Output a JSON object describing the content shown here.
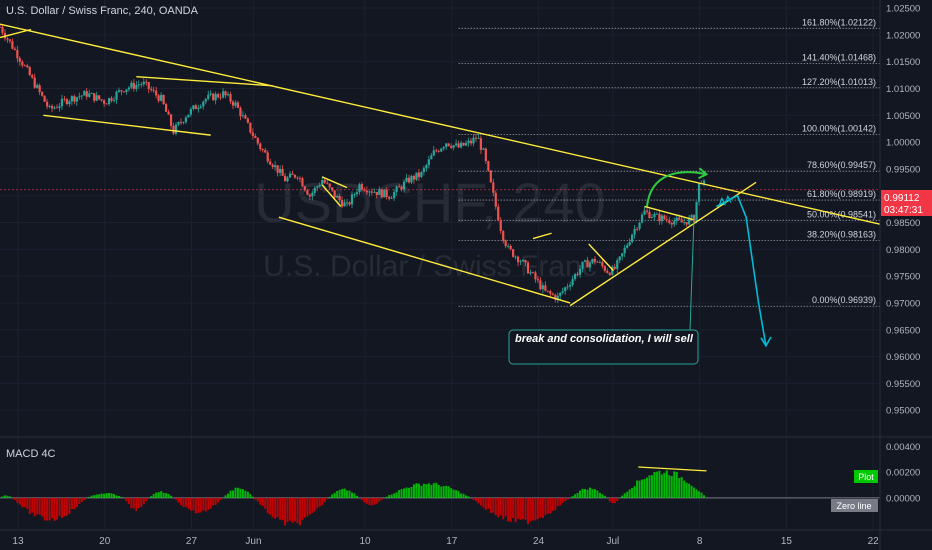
{
  "header": {
    "title": "U.S. Dollar / Swiss Franc, 240, OANDA"
  },
  "watermark": {
    "symbol": "USDCHF, 240",
    "name": "U.S. Dollar / Swiss Franc"
  },
  "price": {
    "current": "0.99112",
    "countdown": "03:47:31"
  },
  "annotation": {
    "text": "break and consolidation, I will sell"
  },
  "macd": {
    "title": "MACD 4C",
    "plot_label": "Plot",
    "zero_label": "Zero line"
  },
  "colors": {
    "background": "#131722",
    "bull": "#26a69a",
    "bear": "#ef5350",
    "trendline": "#ffeb3b",
    "arrow_green": "#2ecc40",
    "arrow_cyan": "#00bcd4",
    "price_tag": "#f23645",
    "macd_green": "#00c800",
    "macd_red": "#d50000"
  },
  "chart_data": [
    {
      "type": "candlestick",
      "title": "U.S. Dollar / Swiss Franc, 240, OANDA",
      "x_ticks": [
        {
          "label": "13",
          "x": 0.45
        },
        {
          "label": "20",
          "x": 7.45
        },
        {
          "label": "27",
          "x": 14.45
        },
        {
          "label": "Jun",
          "x": 19.45
        },
        {
          "label": "10",
          "x": 28.45
        },
        {
          "label": "17",
          "x": 35.45
        },
        {
          "label": "24",
          "x": 42.45
        },
        {
          "label": "Jul",
          "x": 48.45
        },
        {
          "label": "8",
          "x": 55.45
        },
        {
          "label": "15",
          "x": 62.45
        },
        {
          "label": "22",
          "x": 69.45
        }
      ],
      "xlim": [
        -1.0,
        70.0
      ],
      "y_ticks": [
        "0.95000",
        "0.95500",
        "0.96000",
        "0.96500",
        "0.97000",
        "0.97500",
        "0.98000",
        "0.98500",
        "0.99000",
        "0.99500",
        "1.00000",
        "1.00500",
        "1.01000",
        "1.01500",
        "1.02000",
        "1.02500"
      ],
      "ylim": [
        0.945,
        1.0265
      ],
      "fib_levels": [
        {
          "label": "161.80%(1.02122)",
          "value": 1.02122
        },
        {
          "label": "141.40%(1.01468)",
          "value": 1.01468
        },
        {
          "label": "127.20%(1.01013)",
          "value": 1.01013
        },
        {
          "label": "100.00%(1.00142)",
          "value": 1.00142
        },
        {
          "label": "78.60%(0.99457)",
          "value": 0.99457
        },
        {
          "label": "61.80%(0.98919)",
          "value": 0.98919
        },
        {
          "label": "50.00%(0.98541)",
          "value": 0.98541
        },
        {
          "label": "38.20%(0.98163)",
          "value": 0.98163
        },
        {
          "label": "0.00%(0.96939)",
          "value": 0.96939
        }
      ],
      "fib_x_start": 36.0,
      "close_path": [
        [
          -1.0,
          1.0215
        ],
        [
          0.5,
          1.016
        ],
        [
          2.0,
          1.01
        ],
        [
          3.0,
          1.006
        ],
        [
          4.5,
          1.008
        ],
        [
          6.0,
          1.009
        ],
        [
          7.5,
          1.0075
        ],
        [
          9.0,
          1.01
        ],
        [
          10.5,
          1.011
        ],
        [
          12.0,
          1.008
        ],
        [
          13.0,
          1.002
        ],
        [
          14.0,
          1.005
        ],
        [
          15.5,
          1.008
        ],
        [
          17.0,
          1.009
        ],
        [
          18.0,
          1.007
        ],
        [
          19.0,
          1.003
        ],
        [
          20.0,
          0.999
        ],
        [
          21.0,
          0.996
        ],
        [
          22.0,
          0.993
        ],
        [
          23.0,
          0.994
        ],
        [
          24.0,
          0.99
        ],
        [
          25.0,
          0.993
        ],
        [
          26.0,
          0.99
        ],
        [
          27.0,
          0.988
        ],
        [
          28.0,
          0.992
        ],
        [
          29.0,
          0.991
        ],
        [
          30.5,
          0.99
        ],
        [
          32.0,
          0.993
        ],
        [
          33.0,
          0.994
        ],
        [
          34.0,
          0.998
        ],
        [
          35.0,
          1.0
        ],
        [
          36.0,
          0.999
        ],
        [
          37.0,
          1.0
        ],
        [
          37.5,
          1.001
        ],
        [
          38.0,
          0.998
        ],
        [
          38.5,
          0.993
        ],
        [
          39.0,
          0.988
        ],
        [
          39.5,
          0.983
        ],
        [
          40.0,
          0.98
        ],
        [
          41.0,
          0.978
        ],
        [
          42.0,
          0.975
        ],
        [
          43.0,
          0.972
        ],
        [
          44.0,
          0.971
        ],
        [
          45.0,
          0.974
        ],
        [
          46.0,
          0.977
        ],
        [
          47.0,
          0.978
        ],
        [
          48.0,
          0.976
        ],
        [
          48.5,
          0.976
        ],
        [
          49.0,
          0.978
        ],
        [
          50.0,
          0.983
        ],
        [
          51.0,
          0.987
        ],
        [
          52.0,
          0.986
        ],
        [
          53.0,
          0.9855
        ],
        [
          54.0,
          0.985
        ],
        [
          55.0,
          0.9858
        ],
        [
          55.5,
          0.9935
        ],
        [
          56.0,
          0.9911
        ]
      ],
      "trendlines": [
        {
          "points": [
            [
              -1.0,
              1.022
            ],
            [
              70.0,
              0.9847
            ]
          ]
        },
        {
          "points": [
            [
              -1.0,
              1.0195
            ],
            [
              1.5,
              1.021
            ]
          ]
        },
        {
          "points": [
            [
              2.5,
              1.005
            ],
            [
              16.0,
              1.0013
            ]
          ]
        },
        {
          "points": [
            [
              10.0,
              1.0122
            ],
            [
              21.0,
              1.0105
            ]
          ]
        },
        {
          "points": [
            [
              21.5,
              0.986
            ],
            [
              45.0,
              0.97
            ]
          ]
        },
        {
          "points": [
            [
              25.0,
              0.9935
            ],
            [
              27.0,
              0.9915
            ]
          ]
        },
        {
          "points": [
            [
              25.0,
              0.992
            ],
            [
              26.5,
              0.988
            ]
          ]
        },
        {
          "points": [
            [
              42.0,
              0.982
            ],
            [
              43.5,
              0.983
            ]
          ]
        },
        {
          "points": [
            [
              46.5,
              0.981
            ],
            [
              48.5,
              0.976
            ]
          ]
        },
        {
          "points": [
            [
              45.0,
              0.9695
            ],
            [
              60.0,
              0.9925
            ]
          ]
        },
        {
          "points": [
            [
              51.0,
              0.988
            ],
            [
              55.0,
              0.9855
            ]
          ]
        }
      ],
      "projection": {
        "green_arc": [
          [
            51.2,
            0.988
          ],
          [
            51.5,
            0.9945
          ],
          [
            54.0,
            0.995
          ],
          [
            56.0,
            0.994
          ]
        ],
        "cyan_path": [
          [
            56.8,
            0.988
          ],
          [
            58.5,
            0.99
          ],
          [
            59.2,
            0.986
          ],
          [
            60.2,
            0.97
          ],
          [
            60.8,
            0.962
          ]
        ]
      },
      "callout_anchor": [
        55.0,
        0.9865
      ]
    },
    {
      "type": "bar",
      "title": "MACD 4C",
      "y_ticks": [
        "0.00000",
        "0.00200",
        "0.00400"
      ],
      "ylim": [
        -0.0025,
        0.0045
      ],
      "x_range": [
        -1.0,
        56.0
      ],
      "series": [
        {
          "name": "Plot",
          "segments": [
            {
              "from": -1.0,
              "to": 0.0,
              "peak": 0.0002
            },
            {
              "from": 0.0,
              "to": 6.0,
              "peak": -0.0018
            },
            {
              "from": 6.0,
              "to": 9.0,
              "peak": 0.0004
            },
            {
              "from": 9.0,
              "to": 11.0,
              "peak": -0.001
            },
            {
              "from": 11.0,
              "to": 13.0,
              "peak": 0.0005
            },
            {
              "from": 13.0,
              "to": 17.0,
              "peak": -0.0012
            },
            {
              "from": 17.0,
              "to": 19.5,
              "peak": 0.0008
            },
            {
              "from": 19.5,
              "to": 25.5,
              "peak": -0.0022
            },
            {
              "from": 25.5,
              "to": 28.0,
              "peak": 0.0007
            },
            {
              "from": 28.0,
              "to": 30.0,
              "peak": -0.0006
            },
            {
              "from": 30.0,
              "to": 37.0,
              "peak": 0.0012
            },
            {
              "from": 37.0,
              "to": 45.0,
              "peak": -0.002
            },
            {
              "from": 45.0,
              "to": 48.0,
              "peak": 0.0008
            },
            {
              "from": 48.0,
              "to": 49.0,
              "peak": -0.0005
            },
            {
              "from": 49.0,
              "to": 56.0,
              "peak": 0.0022
            }
          ]
        }
      ],
      "divergence_line": [
        [
          50.5,
          0.0024
        ],
        [
          56.0,
          0.0021
        ]
      ]
    }
  ]
}
